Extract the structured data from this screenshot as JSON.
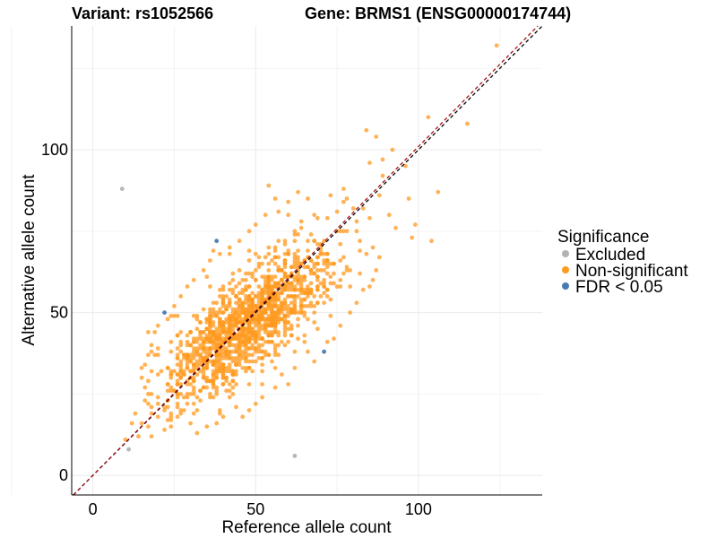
{
  "chart_data": {
    "type": "scatter",
    "title_left": "Variant: rs1052566",
    "title_right": "Gene: BRMS1 (ENSG00000174744)",
    "xlabel": "Reference allele count",
    "ylabel": "Alternative allele count",
    "xlim": [
      -6.5,
      138
    ],
    "ylim": [
      -6,
      138
    ],
    "x_ticks": [
      0,
      50,
      100
    ],
    "y_ticks": [
      0,
      50,
      100
    ],
    "grid": true,
    "reference_lines": [
      {
        "name": "identity",
        "slope": 1,
        "intercept": 0,
        "color": "#000000",
        "dash": true
      },
      {
        "name": "fit",
        "slope": 1.01,
        "intercept": 0,
        "color": "#a50f15",
        "dash": true
      }
    ],
    "legend": {
      "title": "Significance",
      "placement": "right",
      "entries": [
        {
          "label": "Excluded",
          "color": "#b3b3b3"
        },
        {
          "label": "Non-significant",
          "color": "#ff9a1f"
        },
        {
          "label": "FDR < 0.05",
          "color": "#4a7bb0"
        }
      ]
    },
    "series": [
      {
        "name": "Excluded",
        "color": "#b3b3b3",
        "points": [
          [
            9,
            88
          ],
          [
            11,
            8
          ],
          [
            62,
            6
          ]
        ]
      },
      {
        "name": "FDR < 0.05",
        "color": "#4a7bb0",
        "points": [
          [
            22,
            50
          ],
          [
            38,
            72
          ],
          [
            71,
            38
          ]
        ]
      },
      {
        "name": "Non-significant",
        "color": "#ff9a1f",
        "cloud": {
          "count": 1400,
          "center": [
            47,
            46
          ],
          "sd_x": 13,
          "sd_y": 12,
          "correlation": 0.78,
          "x_range": [
            9,
            85
          ],
          "y_range": [
            12,
            92
          ]
        },
        "points": [
          [
            124,
            132
          ],
          [
            103,
            110
          ],
          [
            115,
            108
          ],
          [
            84,
            106
          ],
          [
            87,
            104
          ],
          [
            89,
            97
          ],
          [
            92,
            100
          ],
          [
            96,
            95
          ],
          [
            89,
            92
          ],
          [
            97,
            85
          ],
          [
            106,
            87
          ],
          [
            104,
            72
          ],
          [
            99,
            77
          ],
          [
            98,
            73
          ],
          [
            91,
            80
          ],
          [
            93,
            76
          ],
          [
            88,
            86
          ],
          [
            85,
            96
          ],
          [
            10,
            11
          ],
          [
            12,
            16
          ],
          [
            14,
            12
          ],
          [
            13,
            19
          ],
          [
            18,
            12
          ],
          [
            17,
            15
          ],
          [
            54,
            89
          ],
          [
            56,
            85
          ],
          [
            60,
            84
          ],
          [
            63,
            87
          ],
          [
            66,
            85
          ],
          [
            77,
            88
          ],
          [
            80,
            82
          ],
          [
            81,
            78
          ],
          [
            78,
            75
          ],
          [
            82,
            72
          ],
          [
            84,
            68
          ],
          [
            86,
            70
          ],
          [
            88,
            67
          ],
          [
            87,
            63
          ],
          [
            86,
            60
          ],
          [
            85,
            58
          ],
          [
            83,
            57
          ],
          [
            81,
            53
          ],
          [
            79,
            50
          ],
          [
            76,
            46
          ],
          [
            74,
            42
          ],
          [
            72,
            41
          ],
          [
            68,
            35
          ],
          [
            66,
            38
          ],
          [
            62,
            33
          ],
          [
            58,
            31
          ],
          [
            60,
            28
          ],
          [
            56,
            27
          ],
          [
            52,
            24
          ],
          [
            50,
            22
          ],
          [
            48,
            20
          ],
          [
            46,
            18
          ],
          [
            44,
            21
          ],
          [
            40,
            18
          ],
          [
            38,
            16
          ],
          [
            35,
            15
          ],
          [
            32,
            13
          ],
          [
            30,
            16
          ],
          [
            28,
            20
          ],
          [
            26,
            18
          ],
          [
            24,
            17
          ],
          [
            22,
            20
          ],
          [
            20,
            22
          ],
          [
            18,
            25
          ],
          [
            16,
            27
          ],
          [
            15,
            30
          ],
          [
            16,
            34
          ],
          [
            17,
            37
          ],
          [
            18,
            40
          ],
          [
            19,
            44
          ],
          [
            20,
            46
          ],
          [
            23,
            48
          ],
          [
            25,
            52
          ],
          [
            27,
            55
          ],
          [
            29,
            58
          ],
          [
            31,
            60
          ],
          [
            34,
            63
          ],
          [
            36,
            66
          ],
          [
            39,
            68
          ],
          [
            42,
            70
          ],
          [
            45,
            72
          ],
          [
            48,
            75
          ],
          [
            50,
            77
          ],
          [
            53,
            80
          ],
          [
            57,
            81
          ],
          [
            60,
            80
          ],
          [
            64,
            78
          ],
          [
            68,
            80
          ],
          [
            72,
            79
          ],
          [
            75,
            81
          ],
          [
            78,
            85
          ],
          [
            73,
            86
          ]
        ]
      }
    ]
  }
}
